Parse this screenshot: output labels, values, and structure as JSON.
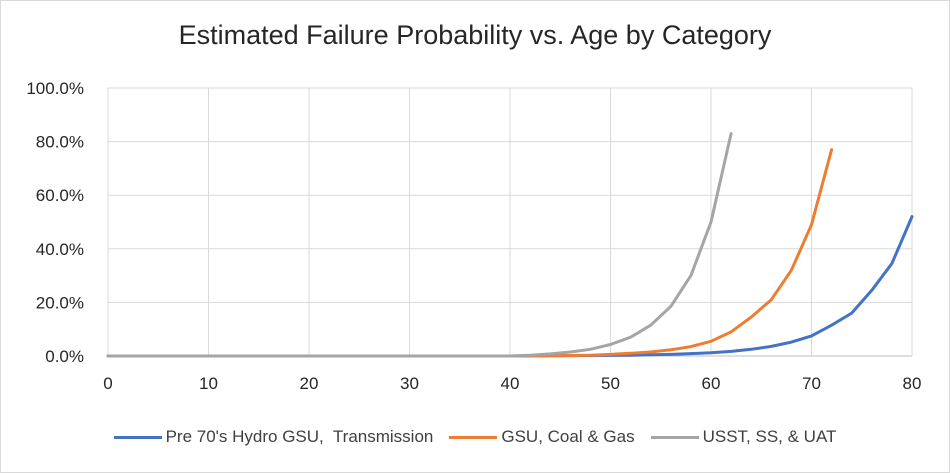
{
  "chart_data": {
    "type": "line",
    "title": "Estimated Failure Probability vs. Age by Category",
    "xlabel": "",
    "ylabel": "",
    "xlim": [
      0,
      80
    ],
    "ylim": [
      0,
      100
    ],
    "x_ticks": [
      0,
      10,
      20,
      30,
      40,
      50,
      60,
      70,
      80
    ],
    "x_tick_labels": [
      "0",
      "10",
      "20",
      "30",
      "40",
      "50",
      "60",
      "70",
      "80"
    ],
    "y_ticks": [
      0,
      20,
      40,
      60,
      80,
      100
    ],
    "y_tick_labels": [
      "0.0%",
      "20.0%",
      "40.0%",
      "60.0%",
      "80.0%",
      "100.0%"
    ],
    "grid": true,
    "legend_position": "bottom",
    "series": [
      {
        "name": "Pre 70's Hydro GSU,  Transmission",
        "color": "#4472C4",
        "x": [
          0,
          10,
          20,
          30,
          40,
          44,
          48,
          52,
          56,
          58,
          60,
          62,
          64,
          66,
          68,
          70,
          72,
          74,
          76,
          78,
          80
        ],
        "y": [
          0,
          0,
          0,
          0,
          0,
          0.1,
          0.2,
          0.3,
          0.6,
          0.9,
          1.2,
          1.7,
          2.5,
          3.6,
          5.2,
          7.5,
          11.5,
          16,
          24.5,
          34.5,
          52
        ]
      },
      {
        "name": "GSU, Coal & Gas",
        "color": "#ED7D31",
        "x": [
          0,
          10,
          20,
          30,
          40,
          44,
          48,
          50,
          52,
          54,
          56,
          58,
          60,
          62,
          64,
          66,
          68,
          70,
          72
        ],
        "y": [
          0,
          0,
          0,
          0,
          0,
          0.1,
          0.3,
          0.6,
          1.0,
          1.5,
          2.3,
          3.5,
          5.5,
          9.0,
          14.5,
          21.0,
          32.0,
          49.0,
          77.0
        ]
      },
      {
        "name": "USST, SS, & UAT",
        "color": "#A5A5A5",
        "x": [
          0,
          10,
          20,
          30,
          40,
          42,
          44,
          46,
          48,
          50,
          52,
          54,
          56,
          58,
          60,
          62
        ],
        "y": [
          0,
          0,
          0,
          0,
          0,
          0.3,
          0.8,
          1.5,
          2.5,
          4.3,
          7.0,
          11.5,
          18.5,
          30.0,
          50.0,
          83.0
        ]
      }
    ]
  }
}
